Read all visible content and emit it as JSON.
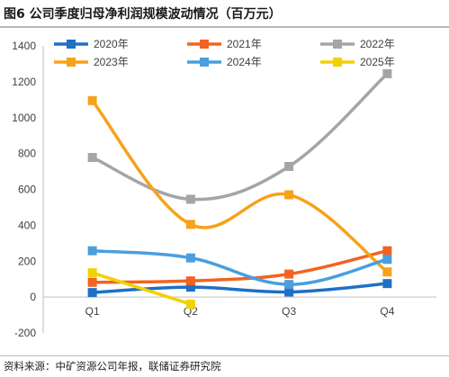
{
  "title": "图6  公司季度归母净利润规模波动情况（百万元）",
  "source": "资料来源：中矿资源公司年报，联储证券研究院",
  "chart_data": {
    "type": "line",
    "categories": [
      "Q1",
      "Q2",
      "Q3",
      "Q4"
    ],
    "ylim": [
      -200,
      1400
    ],
    "yticks": [
      -200,
      0,
      200,
      400,
      600,
      800,
      1000,
      1200,
      1400
    ],
    "grid": false,
    "legend_position": "top",
    "series": [
      {
        "name": "2020年",
        "color": "#1f6fc5",
        "values": [
          25,
          55,
          28,
          75
        ]
      },
      {
        "name": "2021年",
        "color": "#f26322",
        "values": [
          82,
          90,
          128,
          258
        ]
      },
      {
        "name": "2022年",
        "color": "#a5a5a5",
        "values": [
          778,
          545,
          728,
          1245
        ]
      },
      {
        "name": "2023年",
        "color": "#f7a21b",
        "values": [
          1095,
          405,
          570,
          140
        ]
      },
      {
        "name": "2024年",
        "color": "#4a9fdc",
        "values": [
          258,
          218,
          70,
          210
        ]
      },
      {
        "name": "2025年",
        "color": "#f2d100",
        "values": [
          135,
          -40,
          null,
          null
        ]
      }
    ]
  }
}
